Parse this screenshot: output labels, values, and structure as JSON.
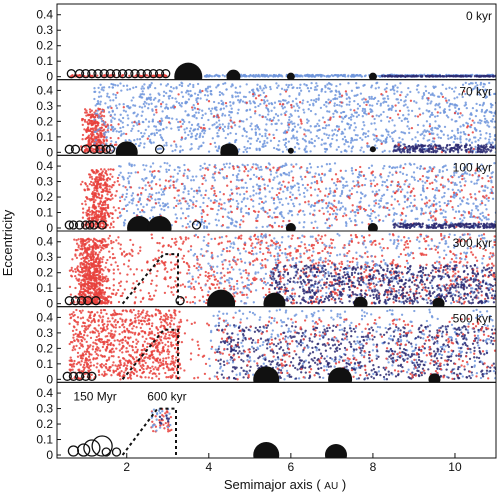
{
  "chart_data": {
    "type": "scatter",
    "xlabel": "Semimajor axis",
    "xlabel_unit": "AU",
    "ylabel": "Eccentricity",
    "xlim": [
      0.3,
      11.0
    ],
    "ylim": [
      0,
      0.45
    ],
    "xticks": [
      2,
      4,
      6,
      8,
      10
    ],
    "yticks": [
      0,
      0.1,
      0.2,
      0.3,
      0.4
    ],
    "ytick_labels": [
      "0",
      "0.1",
      "0.2",
      "0.3",
      "0.4"
    ],
    "grid": false,
    "colors": {
      "s_type": "#e8413c",
      "c_type": "#6f95dc",
      "outer": "#2b2a72",
      "planet": "#111111"
    },
    "panels": [
      {
        "label": "0 kyr",
        "planets": [
          [
            3.5,
            0,
            14
          ],
          [
            4.6,
            0,
            7
          ],
          [
            6.0,
            0,
            4
          ],
          [
            8.0,
            0,
            4
          ]
        ],
        "embryos": [
          0.65,
          0.85,
          1.0,
          1.15,
          1.3,
          1.45,
          1.6,
          1.75,
          1.9,
          2.05,
          2.2,
          2.35,
          2.5,
          2.65,
          2.8,
          2.95
        ],
        "scatter": {
          "seed": 1,
          "groups": [
            {
              "color": "s_type",
              "n": 110,
              "x": [
                0.6,
                3.0
              ],
              "e": [
                0,
                0.01
              ],
              "kind": "uniform"
            },
            {
              "color": "c_type",
              "n": 420,
              "x": [
                3.9,
                11.0
              ],
              "e": [
                0,
                0.012
              ],
              "kind": "uniform"
            },
            {
              "color": "outer",
              "n": 160,
              "x": [
                8.2,
                11.0
              ],
              "e": [
                0,
                0.006
              ],
              "kind": "uniform"
            }
          ]
        }
      },
      {
        "label": "70 kyr",
        "planets": [
          [
            2.0,
            0,
            11
          ],
          [
            4.5,
            0,
            9
          ],
          [
            6.0,
            0.01,
            3
          ],
          [
            8.0,
            0.02,
            3
          ]
        ],
        "embryos": [
          0.6,
          0.75,
          1.0,
          1.2,
          1.35,
          1.5,
          1.6,
          2.8,
          4.4
        ],
        "scatter": {
          "seed": 2,
          "groups": [
            {
              "color": "s_type",
              "n": 320,
              "x": [
                0.9,
                1.6
              ],
              "e": [
                0,
                0.28
              ],
              "kind": "peak"
            },
            {
              "color": "c_type",
              "n": 1500,
              "x": [
                1.2,
                11.0
              ],
              "e": [
                0,
                0.45
              ],
              "kind": "uniform"
            },
            {
              "color": "outer",
              "n": 220,
              "x": [
                8.5,
                11.0
              ],
              "e": [
                0,
                0.05
              ],
              "kind": "uniform"
            },
            {
              "color": "s_type",
              "n": 120,
              "x": [
                1.3,
                10.5
              ],
              "e": [
                0,
                0.4
              ],
              "kind": "uniform"
            }
          ]
        }
      },
      {
        "label": "100 kyr",
        "planets": [
          [
            2.3,
            0,
            12
          ],
          [
            2.8,
            0,
            12
          ],
          [
            6.0,
            0,
            5
          ],
          [
            8.0,
            0,
            5
          ]
        ],
        "embryos": [
          0.6,
          0.7,
          0.85,
          1.0,
          1.1,
          1.2,
          1.4,
          3.7
        ],
        "scatter": {
          "seed": 3,
          "groups": [
            {
              "color": "s_type",
              "n": 400,
              "x": [
                0.9,
                1.7
              ],
              "e": [
                0,
                0.38
              ],
              "kind": "peak"
            },
            {
              "color": "c_type",
              "n": 1000,
              "x": [
                1.8,
                11.0
              ],
              "e": [
                0,
                0.42
              ],
              "kind": "uniform"
            },
            {
              "color": "s_type",
              "n": 360,
              "x": [
                1.6,
                11.0
              ],
              "e": [
                0,
                0.4
              ],
              "kind": "uniform"
            },
            {
              "color": "outer",
              "n": 200,
              "x": [
                8.5,
                11.0
              ],
              "e": [
                0,
                0.03
              ],
              "kind": "uniform"
            }
          ]
        }
      },
      {
        "label": "300 kyr",
        "planets": [
          [
            4.3,
            0,
            14
          ],
          [
            5.6,
            0,
            11
          ],
          [
            7.7,
            0,
            7
          ],
          [
            9.6,
            0,
            6
          ]
        ],
        "embryos": [
          0.6,
          0.75,
          0.9,
          1.05,
          1.25,
          3.3
        ],
        "curve": [
          [
            1.9,
            0
          ],
          [
            2.9,
            0.32
          ],
          [
            3.25,
            0.32
          ],
          [
            3.25,
            0
          ]
        ],
        "scatter": {
          "seed": 4,
          "groups": [
            {
              "color": "s_type",
              "n": 700,
              "x": [
                0.7,
                1.6
              ],
              "e": [
                0,
                0.42
              ],
              "kind": "peak"
            },
            {
              "color": "s_type",
              "n": 900,
              "x": [
                1.4,
                11.0
              ],
              "e": [
                0,
                0.45
              ],
              "kind": "uniform"
            },
            {
              "color": "c_type",
              "n": 500,
              "x": [
                3.5,
                11.0
              ],
              "e": [
                0,
                0.45
              ],
              "kind": "uniform"
            },
            {
              "color": "outer",
              "n": 700,
              "x": [
                5.5,
                11.0
              ],
              "e": [
                0,
                0.25
              ],
              "kind": "uniform"
            }
          ]
        }
      },
      {
        "label": "500 kyr",
        "planets": [
          [
            5.4,
            0,
            13
          ],
          [
            7.2,
            0,
            12
          ],
          [
            9.5,
            0,
            6
          ]
        ],
        "embryos": [
          0.55,
          0.7,
          0.85,
          1.0,
          1.15
        ],
        "curve": [
          [
            1.9,
            0
          ],
          [
            2.9,
            0.32
          ],
          [
            3.25,
            0.32
          ],
          [
            3.25,
            0
          ]
        ],
        "scatter": {
          "seed": 5,
          "groups": [
            {
              "color": "s_type",
              "n": 900,
              "x": [
                0.6,
                3.3
              ],
              "e": [
                0,
                0.45
              ],
              "kind": "uniform"
            },
            {
              "color": "c_type",
              "n": 450,
              "x": [
                4.0,
                11.0
              ],
              "e": [
                0,
                0.45
              ],
              "kind": "uniform"
            },
            {
              "color": "outer",
              "n": 700,
              "x": [
                4.2,
                11.0
              ],
              "e": [
                0,
                0.35
              ],
              "kind": "uniform"
            },
            {
              "color": "s_type",
              "n": 300,
              "x": [
                3.3,
                11.0
              ],
              "e": [
                0,
                0.4
              ],
              "kind": "uniform"
            }
          ]
        }
      },
      {
        "label": "150 Myr",
        "label2": "600 kyr",
        "planets": [
          [
            5.4,
            0,
            13
          ],
          [
            7.1,
            0,
            11
          ]
        ],
        "embryos": [
          0.7,
          0.95,
          1.15,
          1.4,
          1.5,
          1.75
        ],
        "embryo_sizes": [
          5,
          6,
          8,
          10,
          4,
          4
        ],
        "curve": [
          [
            1.9,
            0
          ],
          [
            2.75,
            0.3
          ],
          [
            3.2,
            0.3
          ],
          [
            3.2,
            0
          ]
        ],
        "scatter": {
          "seed": 6,
          "groups": [
            {
              "color": "s_type",
              "n": 35,
              "x": [
                2.6,
                3.1
              ],
              "e": [
                0.15,
                0.3
              ],
              "kind": "uniform"
            },
            {
              "color": "c_type",
              "n": 25,
              "x": [
                2.6,
                3.1
              ],
              "e": [
                0.15,
                0.3
              ],
              "kind": "uniform"
            },
            {
              "color": "outer",
              "n": 8,
              "x": [
                2.7,
                3.1
              ],
              "e": [
                0.2,
                0.3
              ],
              "kind": "uniform"
            }
          ]
        }
      }
    ]
  }
}
